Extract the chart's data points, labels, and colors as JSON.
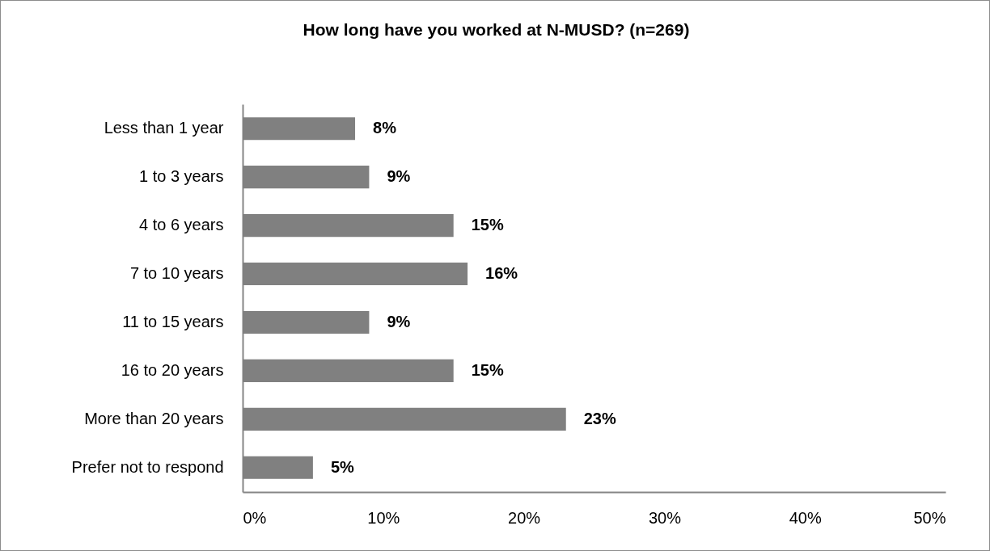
{
  "chart_data": {
    "type": "bar",
    "orientation": "horizontal",
    "title": "How long have you worked at N-MUSD? (n=269)",
    "categories": [
      "Less than 1 year",
      "1 to 3 years",
      "4 to 6 years",
      "7 to 10 years",
      "11 to 15 years",
      "16 to 20 years",
      "More than 20 years",
      "Prefer not to respond"
    ],
    "values": [
      8,
      9,
      15,
      16,
      9,
      15,
      23,
      5
    ],
    "color": "#808080",
    "value_labels": [
      "8%",
      "9%",
      "15%",
      "16%",
      "9%",
      "15%",
      "23%",
      "5%"
    ],
    "xlim": [
      0,
      50
    ],
    "xticks": [
      {
        "value": 0,
        "label": "0%"
      },
      {
        "value": 10,
        "label": "10%"
      },
      {
        "value": 20,
        "label": "20%"
      },
      {
        "value": 30,
        "label": "30%"
      },
      {
        "value": 40,
        "label": "40%"
      },
      {
        "value": 50,
        "label": "50%"
      }
    ]
  }
}
